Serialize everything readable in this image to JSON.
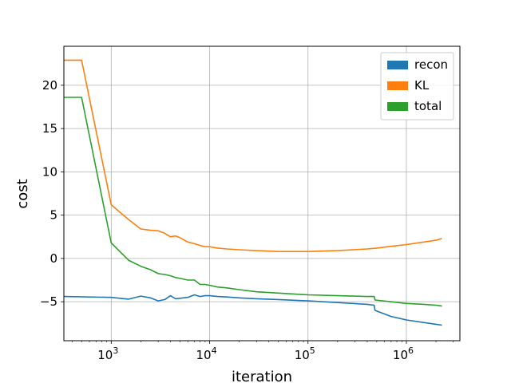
{
  "chart_data": {
    "type": "line",
    "xlabel": "iteration",
    "ylabel": "cost",
    "xscale": "log",
    "xlim": [
      330,
      3500000
    ],
    "ylim": [
      -9.5,
      24.5
    ],
    "grid": true,
    "legend_position": "top-right",
    "x_ticks": [
      {
        "value": 1000,
        "label": "10",
        "exp": "3"
      },
      {
        "value": 10000,
        "label": "10",
        "exp": "4"
      },
      {
        "value": 100000,
        "label": "10",
        "exp": "5"
      },
      {
        "value": 1000000,
        "label": "10",
        "exp": "6"
      }
    ],
    "y_ticks": [
      {
        "value": -5,
        "label": "−5"
      },
      {
        "value": 0,
        "label": "0"
      },
      {
        "value": 5,
        "label": "5"
      },
      {
        "value": 10,
        "label": "10"
      },
      {
        "value": 15,
        "label": "15"
      },
      {
        "value": 20,
        "label": "20"
      }
    ],
    "series": [
      {
        "name": "recon",
        "color": "#1f77b4",
        "x": [
          330,
          1000,
          1500,
          2000,
          2500,
          3000,
          3500,
          4000,
          4500,
          5000,
          6000,
          7000,
          8000,
          9000,
          10000,
          12000,
          15000,
          20000,
          30000,
          50000,
          100000,
          200000,
          400000,
          470000,
          480000,
          700000,
          1000000,
          1500000,
          2000000,
          2300000
        ],
        "y": [
          -4.4,
          -4.5,
          -4.7,
          -4.35,
          -4.55,
          -4.9,
          -4.75,
          -4.3,
          -4.65,
          -4.6,
          -4.5,
          -4.2,
          -4.4,
          -4.3,
          -4.3,
          -4.4,
          -4.45,
          -4.55,
          -4.65,
          -4.75,
          -4.9,
          -5.1,
          -5.3,
          -5.4,
          -6.0,
          -6.7,
          -7.1,
          -7.4,
          -7.6,
          -7.7
        ]
      },
      {
        "name": "KL",
        "color": "#ff7f0e",
        "x": [
          330,
          500,
          1000,
          1500,
          2000,
          2500,
          3000,
          3500,
          4000,
          4500,
          5000,
          6000,
          7000,
          8000,
          9000,
          10000,
          12000,
          15000,
          20000,
          30000,
          50000,
          100000,
          200000,
          400000,
          500000,
          700000,
          1000000,
          1500000,
          2000000,
          2300000
        ],
        "y": [
          22.9,
          22.9,
          6.2,
          4.5,
          3.4,
          3.25,
          3.2,
          2.9,
          2.5,
          2.6,
          2.4,
          1.9,
          1.7,
          1.5,
          1.35,
          1.35,
          1.2,
          1.1,
          1.0,
          0.9,
          0.8,
          0.8,
          0.9,
          1.1,
          1.2,
          1.4,
          1.6,
          1.9,
          2.1,
          2.3
        ]
      },
      {
        "name": "total",
        "color": "#2ca02c",
        "x": [
          330,
          500,
          1000,
          1500,
          2000,
          2500,
          3000,
          3500,
          4000,
          4500,
          5000,
          6000,
          7000,
          8000,
          9000,
          10000,
          12000,
          15000,
          20000,
          30000,
          50000,
          100000,
          200000,
          400000,
          470000,
          480000,
          700000,
          1000000,
          1500000,
          2000000,
          2300000
        ],
        "y": [
          18.6,
          18.6,
          1.8,
          -0.2,
          -0.9,
          -1.3,
          -1.75,
          -1.85,
          -2.0,
          -2.2,
          -2.3,
          -2.5,
          -2.5,
          -3.0,
          -3.0,
          -3.1,
          -3.3,
          -3.4,
          -3.6,
          -3.85,
          -4.0,
          -4.2,
          -4.3,
          -4.4,
          -4.4,
          -4.8,
          -5.0,
          -5.2,
          -5.3,
          -5.4,
          -5.5
        ]
      }
    ]
  }
}
